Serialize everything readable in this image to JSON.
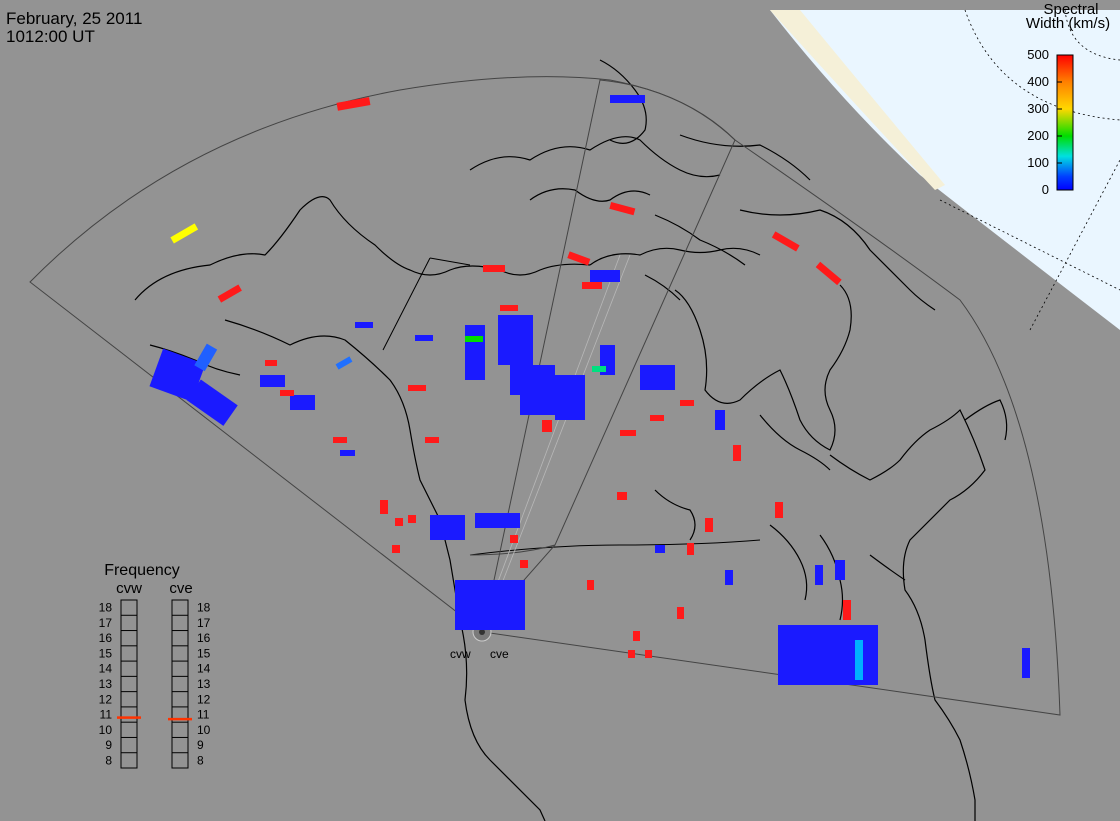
{
  "header": {
    "date": "February, 25 2011",
    "time": "1012:00 UT"
  },
  "colorbar": {
    "title_line1": "Spectral",
    "title_line2": "Width (km/s)",
    "ticks": [
      "500",
      "400",
      "300",
      "200",
      "100",
      "0"
    ],
    "colors": [
      "#ff0000",
      "#ff8000",
      "#ffd800",
      "#00dd00",
      "#00e0e0",
      "#0040ff",
      "#0000ff"
    ]
  },
  "frequency_panel": {
    "title": "Frequency",
    "radar_left": "cvw",
    "radar_right": "cve",
    "ticks": [
      "18",
      "17",
      "16",
      "15",
      "14",
      "13",
      "12",
      "11",
      "10",
      "9",
      "8"
    ],
    "cvw_freq_mhz": 10.8,
    "cve_freq_mhz": 10.7,
    "indicator_color": "#ff3300"
  },
  "radar_labels": {
    "west": "cvw",
    "east": "cve"
  },
  "colors": {
    "background": "#939393",
    "map_lines": "#000000",
    "polar_region": "#eaf6ff",
    "sunlit_edge": "#f5f0d8",
    "scatter_blue": "#1a1aff",
    "scatter_red": "#ff1a1a"
  }
}
